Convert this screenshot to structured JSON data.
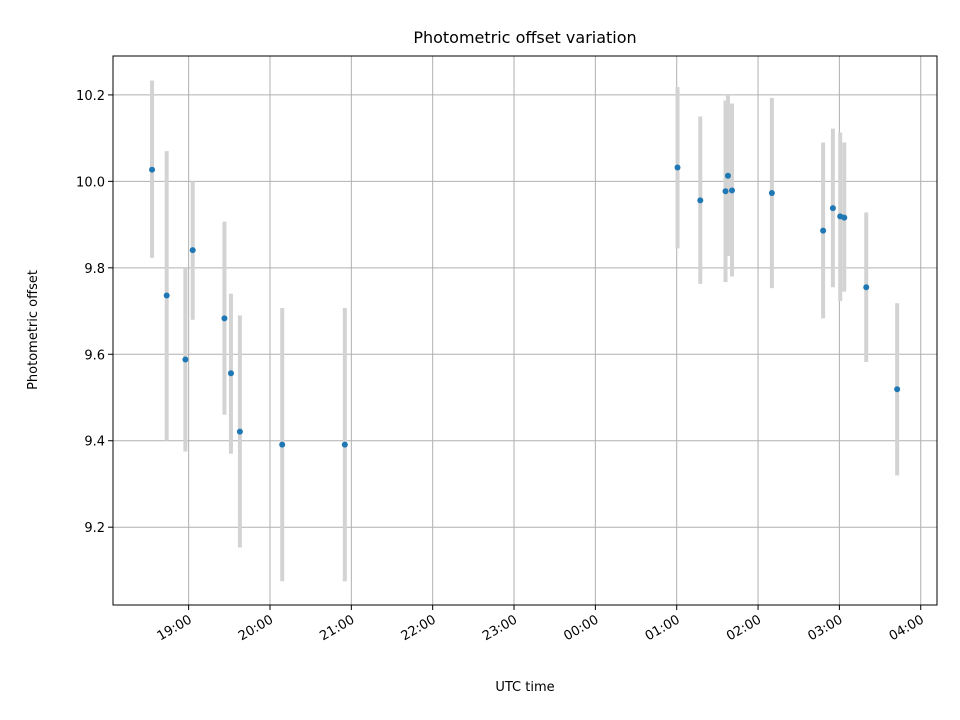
{
  "chart_data": {
    "type": "scatter",
    "title": "Photometric offset variation",
    "xlabel": "UTC time",
    "ylabel": "Photometric offset",
    "x_unit": "hours",
    "x_ticks": [
      {
        "value": 19,
        "label": "19:00"
      },
      {
        "value": 20,
        "label": "20:00"
      },
      {
        "value": 21,
        "label": "21:00"
      },
      {
        "value": 22,
        "label": "22:00"
      },
      {
        "value": 23,
        "label": "23:00"
      },
      {
        "value": 24,
        "label": "00:00"
      },
      {
        "value": 25,
        "label": "01:00"
      },
      {
        "value": 26,
        "label": "02:00"
      },
      {
        "value": 27,
        "label": "03:00"
      },
      {
        "value": 28,
        "label": "04:00"
      }
    ],
    "y_ticks": [
      {
        "value": 9.2,
        "label": "9.2"
      },
      {
        "value": 9.4,
        "label": "9.4"
      },
      {
        "value": 9.6,
        "label": "9.6"
      },
      {
        "value": 9.8,
        "label": "9.8"
      },
      {
        "value": 10.0,
        "label": "10.0"
      },
      {
        "value": 10.2,
        "label": "10.2"
      }
    ],
    "xlim": [
      18.07,
      28.2
    ],
    "ylim": [
      9.02,
      10.29
    ],
    "grid": true,
    "colors": {
      "point": "#1f77b4",
      "errorbar": "#d3d3d3",
      "grid": "#b0b0b0"
    },
    "points": [
      {
        "x": 18.55,
        "y": 10.027,
        "yerr_low": 9.823,
        "yerr_high": 10.233
      },
      {
        "x": 18.73,
        "y": 9.736,
        "yerr_low": 9.4,
        "yerr_high": 10.07
      },
      {
        "x": 18.96,
        "y": 9.588,
        "yerr_low": 9.375,
        "yerr_high": 9.8
      },
      {
        "x": 19.05,
        "y": 9.841,
        "yerr_low": 9.68,
        "yerr_high": 10.0
      },
      {
        "x": 19.44,
        "y": 9.683,
        "yerr_low": 9.46,
        "yerr_high": 9.907
      },
      {
        "x": 19.52,
        "y": 9.556,
        "yerr_low": 9.37,
        "yerr_high": 9.74
      },
      {
        "x": 19.63,
        "y": 9.421,
        "yerr_low": 9.153,
        "yerr_high": 9.69
      },
      {
        "x": 20.15,
        "y": 9.391,
        "yerr_low": 9.075,
        "yerr_high": 9.707
      },
      {
        "x": 20.92,
        "y": 9.391,
        "yerr_low": 9.075,
        "yerr_high": 9.707
      },
      {
        "x": 25.01,
        "y": 10.032,
        "yerr_low": 9.845,
        "yerr_high": 10.218
      },
      {
        "x": 25.29,
        "y": 9.956,
        "yerr_low": 9.763,
        "yerr_high": 10.15
      },
      {
        "x": 25.6,
        "y": 9.977,
        "yerr_low": 9.767,
        "yerr_high": 10.187
      },
      {
        "x": 25.63,
        "y": 10.013,
        "yerr_low": 9.827,
        "yerr_high": 10.2
      },
      {
        "x": 25.68,
        "y": 9.979,
        "yerr_low": 9.78,
        "yerr_high": 10.18
      },
      {
        "x": 26.17,
        "y": 9.973,
        "yerr_low": 9.753,
        "yerr_high": 10.193
      },
      {
        "x": 26.8,
        "y": 9.886,
        "yerr_low": 9.683,
        "yerr_high": 10.09
      },
      {
        "x": 26.92,
        "y": 9.938,
        "yerr_low": 9.755,
        "yerr_high": 10.122
      },
      {
        "x": 27.01,
        "y": 9.919,
        "yerr_low": 9.723,
        "yerr_high": 10.113
      },
      {
        "x": 27.06,
        "y": 9.916,
        "yerr_low": 9.745,
        "yerr_high": 10.09
      },
      {
        "x": 27.33,
        "y": 9.755,
        "yerr_low": 9.582,
        "yerr_high": 9.928
      },
      {
        "x": 27.71,
        "y": 9.519,
        "yerr_low": 9.32,
        "yerr_high": 9.718
      }
    ]
  }
}
